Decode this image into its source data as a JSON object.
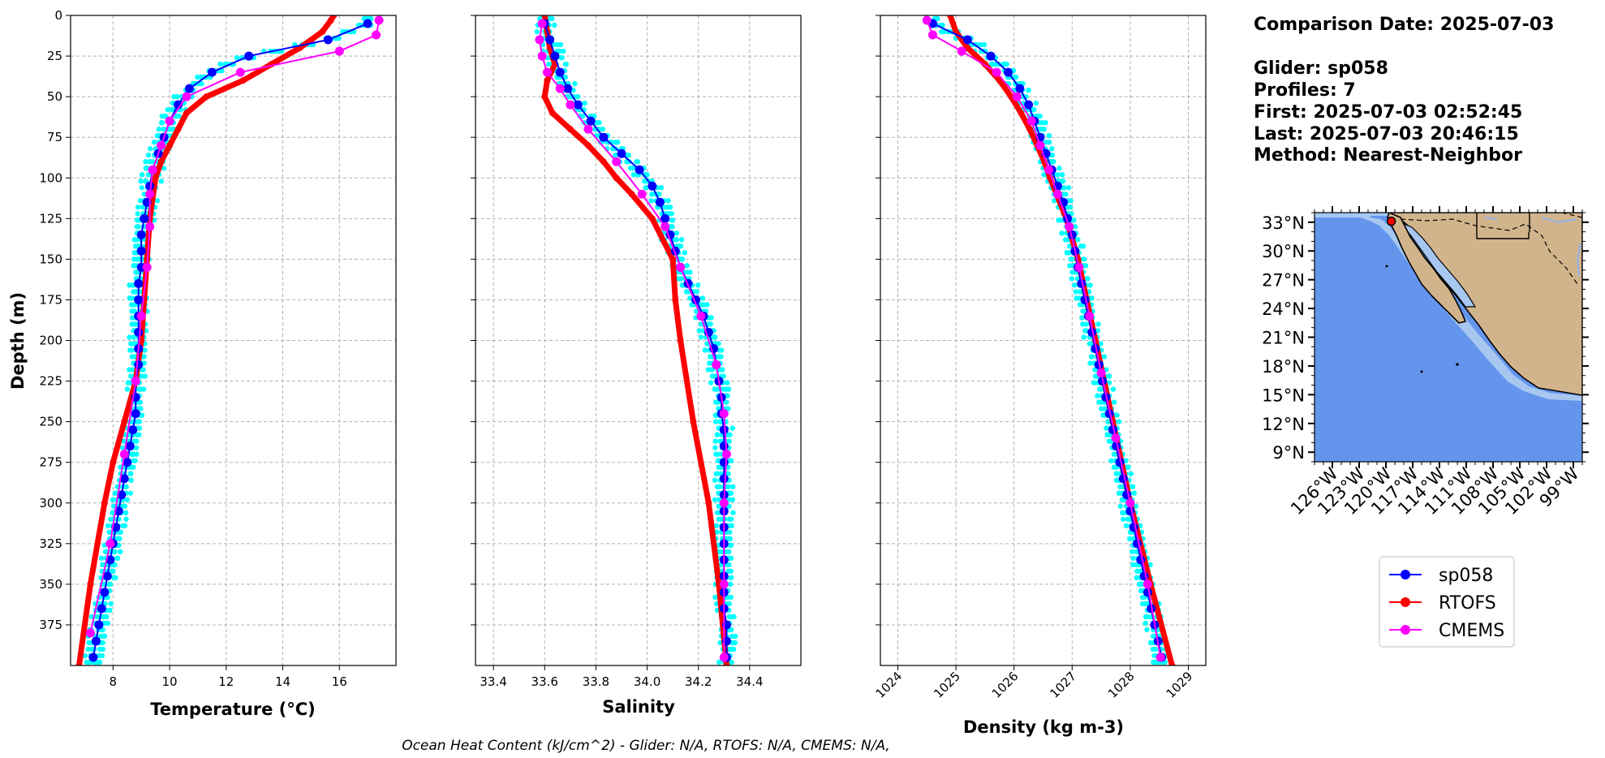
{
  "info": {
    "lines": [
      "Comparison Date: 2025-07-03",
      "",
      "Glider: sp058",
      "Profiles: 7",
      "First: 2025-07-03 02:52:45",
      "Last: 2025-07-03 20:46:15",
      "Method: Nearest-Neighbor"
    ]
  },
  "footer": "Ocean Heat Content (kJ/cm^2) - Glider: N/A,  RTOFS: N/A,  CMEMS: N/A,",
  "colors": {
    "glider": "#0000ff",
    "rtofs": "#ff0000",
    "cmems": "#ff00ff",
    "profiles": "#00ffff",
    "ocean": "#6495ed",
    "land": "#d2b48c",
    "shelf": "#a7c7f0"
  },
  "legend": [
    {
      "label": "sp058",
      "color": "#0000ff"
    },
    {
      "label": "RTOFS",
      "color": "#ff0000"
    },
    {
      "label": "CMEMS",
      "color": "#ff00ff"
    }
  ],
  "map": {
    "lat_labels": [
      "33°N",
      "30°N",
      "27°N",
      "24°N",
      "21°N",
      "18°N",
      "15°N",
      "12°N",
      "9°N"
    ],
    "lon_labels": [
      "126°W",
      "123°W",
      "120°W",
      "117°W",
      "114°W",
      "111°W",
      "108°W",
      "105°W",
      "102°W",
      "99°W"
    ],
    "glider_location": {
      "lon": -119.4,
      "lat": 33.1
    }
  },
  "chart_data": [
    {
      "type": "line",
      "xlabel": "Temperature (°C)",
      "ylabel": "Depth (m)",
      "xlim": [
        6.5,
        18
      ],
      "ylim": [
        400,
        0
      ],
      "xticks": [
        "8",
        "10",
        "12",
        "14",
        "16"
      ],
      "yticks": [
        "0",
        "25",
        "50",
        "75",
        "100",
        "125",
        "150",
        "175",
        "200",
        "225",
        "250",
        "275",
        "300",
        "325",
        "350",
        "375"
      ],
      "grid": true,
      "series": [
        {
          "name": "sp058",
          "depth": [
            5,
            15,
            25,
            35,
            45,
            55,
            65,
            75,
            85,
            95,
            105,
            115,
            125,
            135,
            145,
            155,
            165,
            175,
            185,
            195,
            205,
            215,
            225,
            235,
            245,
            255,
            265,
            275,
            285,
            295,
            305,
            315,
            325,
            335,
            345,
            355,
            365,
            375,
            385,
            395
          ],
          "values": [
            17.0,
            15.6,
            12.8,
            11.5,
            10.7,
            10.3,
            10.0,
            9.8,
            9.6,
            9.4,
            9.3,
            9.2,
            9.1,
            9.0,
            9.0,
            9.0,
            8.9,
            8.9,
            8.9,
            8.9,
            8.9,
            8.9,
            8.8,
            8.8,
            8.8,
            8.7,
            8.6,
            8.5,
            8.4,
            8.3,
            8.2,
            8.1,
            8.0,
            7.9,
            7.8,
            7.7,
            7.6,
            7.5,
            7.4,
            7.3
          ]
        },
        {
          "name": "RTOFS",
          "depth": [
            0,
            3,
            10,
            20,
            30,
            40,
            50,
            60,
            70,
            80,
            90,
            100,
            125,
            150,
            175,
            200,
            225,
            250,
            275,
            300,
            350,
            400
          ],
          "values": [
            15.8,
            15.7,
            15.4,
            14.6,
            13.6,
            12.6,
            11.3,
            10.6,
            10.3,
            10.0,
            9.7,
            9.5,
            9.3,
            9.2,
            9.1,
            9.0,
            8.8,
            8.4,
            8.0,
            7.7,
            7.2,
            6.8
          ]
        },
        {
          "name": "CMEMS",
          "depth": [
            3,
            12,
            22,
            35,
            50,
            65,
            80,
            95,
            110,
            130,
            155,
            185,
            225,
            270,
            325,
            380
          ],
          "values": [
            17.4,
            17.3,
            16.0,
            12.5,
            10.6,
            10.0,
            9.7,
            9.4,
            9.3,
            9.3,
            9.2,
            9.0,
            8.8,
            8.4,
            7.9,
            7.2
          ]
        }
      ]
    },
    {
      "type": "line",
      "xlabel": "Salinity",
      "xlim": [
        33.33,
        34.6
      ],
      "ylim": [
        400,
        0
      ],
      "xticks": [
        "33.4",
        "33.6",
        "33.8",
        "34.0",
        "34.2",
        "34.4"
      ],
      "grid": true,
      "series": [
        {
          "name": "sp058",
          "depth": [
            5,
            15,
            25,
            35,
            45,
            55,
            65,
            75,
            85,
            95,
            105,
            115,
            125,
            135,
            145,
            155,
            165,
            175,
            185,
            195,
            205,
            215,
            225,
            235,
            245,
            255,
            265,
            275,
            285,
            295,
            305,
            315,
            325,
            335,
            345,
            355,
            365,
            375,
            385,
            395
          ],
          "values": [
            33.6,
            33.62,
            33.64,
            33.66,
            33.69,
            33.73,
            33.78,
            33.83,
            33.9,
            33.97,
            34.02,
            34.05,
            34.07,
            34.09,
            34.11,
            34.13,
            34.16,
            34.19,
            34.22,
            34.24,
            34.26,
            34.27,
            34.28,
            34.29,
            34.29,
            34.3,
            34.3,
            34.3,
            34.3,
            34.3,
            34.3,
            34.3,
            34.3,
            34.3,
            34.3,
            34.3,
            34.3,
            34.31,
            34.31,
            34.31
          ]
        },
        {
          "name": "RTOFS",
          "depth": [
            0,
            10,
            20,
            30,
            40,
            50,
            60,
            70,
            80,
            90,
            100,
            110,
            125,
            150,
            175,
            200,
            250,
            300,
            350,
            400
          ],
          "values": [
            33.6,
            33.61,
            33.62,
            33.64,
            33.61,
            33.6,
            33.63,
            33.7,
            33.77,
            33.83,
            33.88,
            33.94,
            34.02,
            34.1,
            34.11,
            34.13,
            34.18,
            34.24,
            34.28,
            34.31
          ]
        },
        {
          "name": "CMEMS",
          "depth": [
            5,
            15,
            25,
            35,
            45,
            55,
            70,
            90,
            110,
            130,
            155,
            185,
            215,
            245,
            270,
            300,
            350,
            395
          ],
          "values": [
            33.59,
            33.58,
            33.59,
            33.61,
            33.66,
            33.7,
            33.77,
            33.88,
            33.98,
            34.07,
            34.13,
            34.21,
            34.27,
            34.3,
            34.31,
            34.3,
            34.3,
            34.3
          ]
        }
      ]
    },
    {
      "type": "line",
      "xlabel": "Density (kg m-3)",
      "xlim": [
        1023.7,
        1029.3
      ],
      "ylim": [
        400,
        0
      ],
      "xticks": [
        "1024",
        "1025",
        "1026",
        "1027",
        "1028",
        "1029"
      ],
      "grid": true,
      "series": [
        {
          "name": "sp058",
          "depth": [
            5,
            15,
            25,
            35,
            45,
            55,
            65,
            75,
            85,
            95,
            105,
            115,
            125,
            135,
            145,
            155,
            165,
            175,
            185,
            195,
            205,
            215,
            225,
            235,
            245,
            255,
            265,
            275,
            285,
            295,
            305,
            315,
            325,
            335,
            345,
            355,
            365,
            375,
            385,
            395
          ],
          "values": [
            1024.6,
            1025.2,
            1025.6,
            1025.9,
            1026.1,
            1026.25,
            1026.35,
            1026.45,
            1026.55,
            1026.65,
            1026.75,
            1026.85,
            1026.92,
            1027.0,
            1027.05,
            1027.1,
            1027.16,
            1027.22,
            1027.28,
            1027.34,
            1027.4,
            1027.46,
            1027.52,
            1027.58,
            1027.64,
            1027.7,
            1027.76,
            1027.82,
            1027.88,
            1027.94,
            1028.0,
            1028.06,
            1028.12,
            1028.18,
            1028.24,
            1028.3,
            1028.36,
            1028.42,
            1028.48,
            1028.54
          ]
        },
        {
          "name": "RTOFS",
          "depth": [
            0,
            10,
            20,
            30,
            40,
            50,
            60,
            70,
            80,
            90,
            100,
            125,
            150,
            175,
            200,
            250,
            300,
            350,
            400
          ],
          "values": [
            1024.9,
            1025.0,
            1025.2,
            1025.5,
            1025.75,
            1025.95,
            1026.12,
            1026.27,
            1026.4,
            1026.52,
            1026.62,
            1026.9,
            1027.1,
            1027.25,
            1027.4,
            1027.7,
            1028.0,
            1028.35,
            1028.72
          ]
        },
        {
          "name": "CMEMS",
          "depth": [
            3,
            12,
            22,
            35,
            50,
            65,
            80,
            95,
            110,
            130,
            155,
            185,
            220,
            260,
            300,
            350,
            395
          ],
          "values": [
            1024.5,
            1024.6,
            1025.1,
            1025.7,
            1026.05,
            1026.3,
            1026.45,
            1026.6,
            1026.75,
            1026.95,
            1027.12,
            1027.3,
            1027.5,
            1027.75,
            1028.0,
            1028.3,
            1028.52
          ]
        }
      ]
    }
  ]
}
